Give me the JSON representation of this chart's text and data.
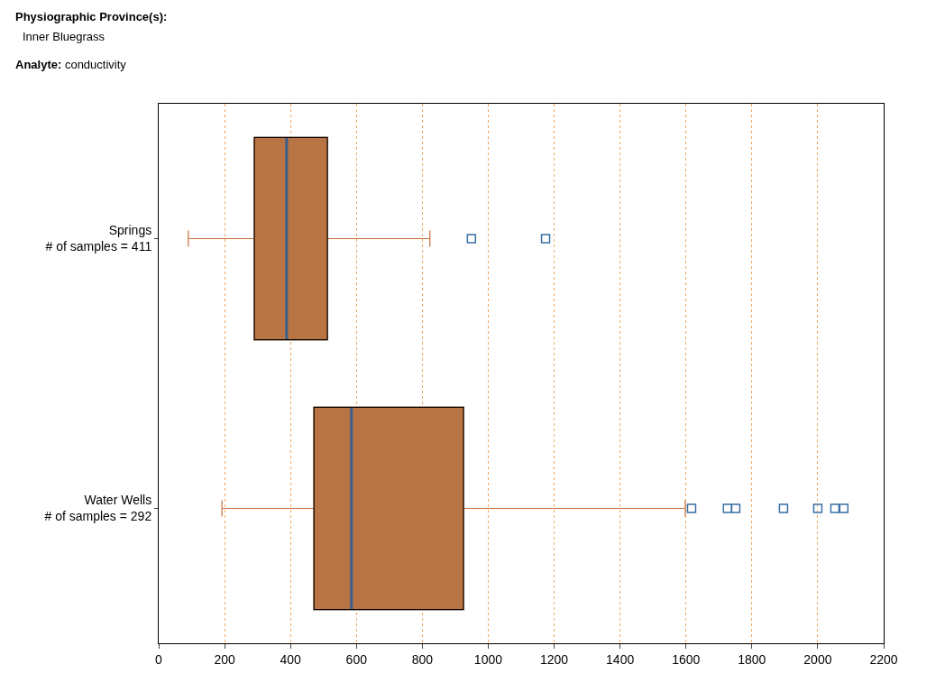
{
  "chart_data": {
    "type": "box",
    "title": "Physiographic Province(s):",
    "subtitle": "Inner Bluegrass",
    "annotations": [
      "Analyte: conductivity"
    ],
    "orientation": "horizontal",
    "categories": [
      "Springs\n# of samples = 411",
      "Water Wells\n# of samples = 292"
    ],
    "boxes": [
      {
        "low": 90,
        "q1": 290,
        "median": 388,
        "q3": 512,
        "high": 823,
        "outliers": [
          949,
          1174
        ]
      },
      {
        "low": 192,
        "q1": 471,
        "median": 585,
        "q3": 925,
        "high": 1598,
        "outliers": [
          1617,
          1726,
          1751,
          1896,
          2000,
          2052,
          2079
        ]
      }
    ],
    "color": "#b87444",
    "marker": "square",
    "xlim": [
      0,
      2200
    ],
    "xticks": [
      0,
      200,
      400,
      600,
      800,
      1000,
      1200,
      1400,
      1600,
      1800,
      2000,
      2200
    ],
    "grid": "x"
  }
}
